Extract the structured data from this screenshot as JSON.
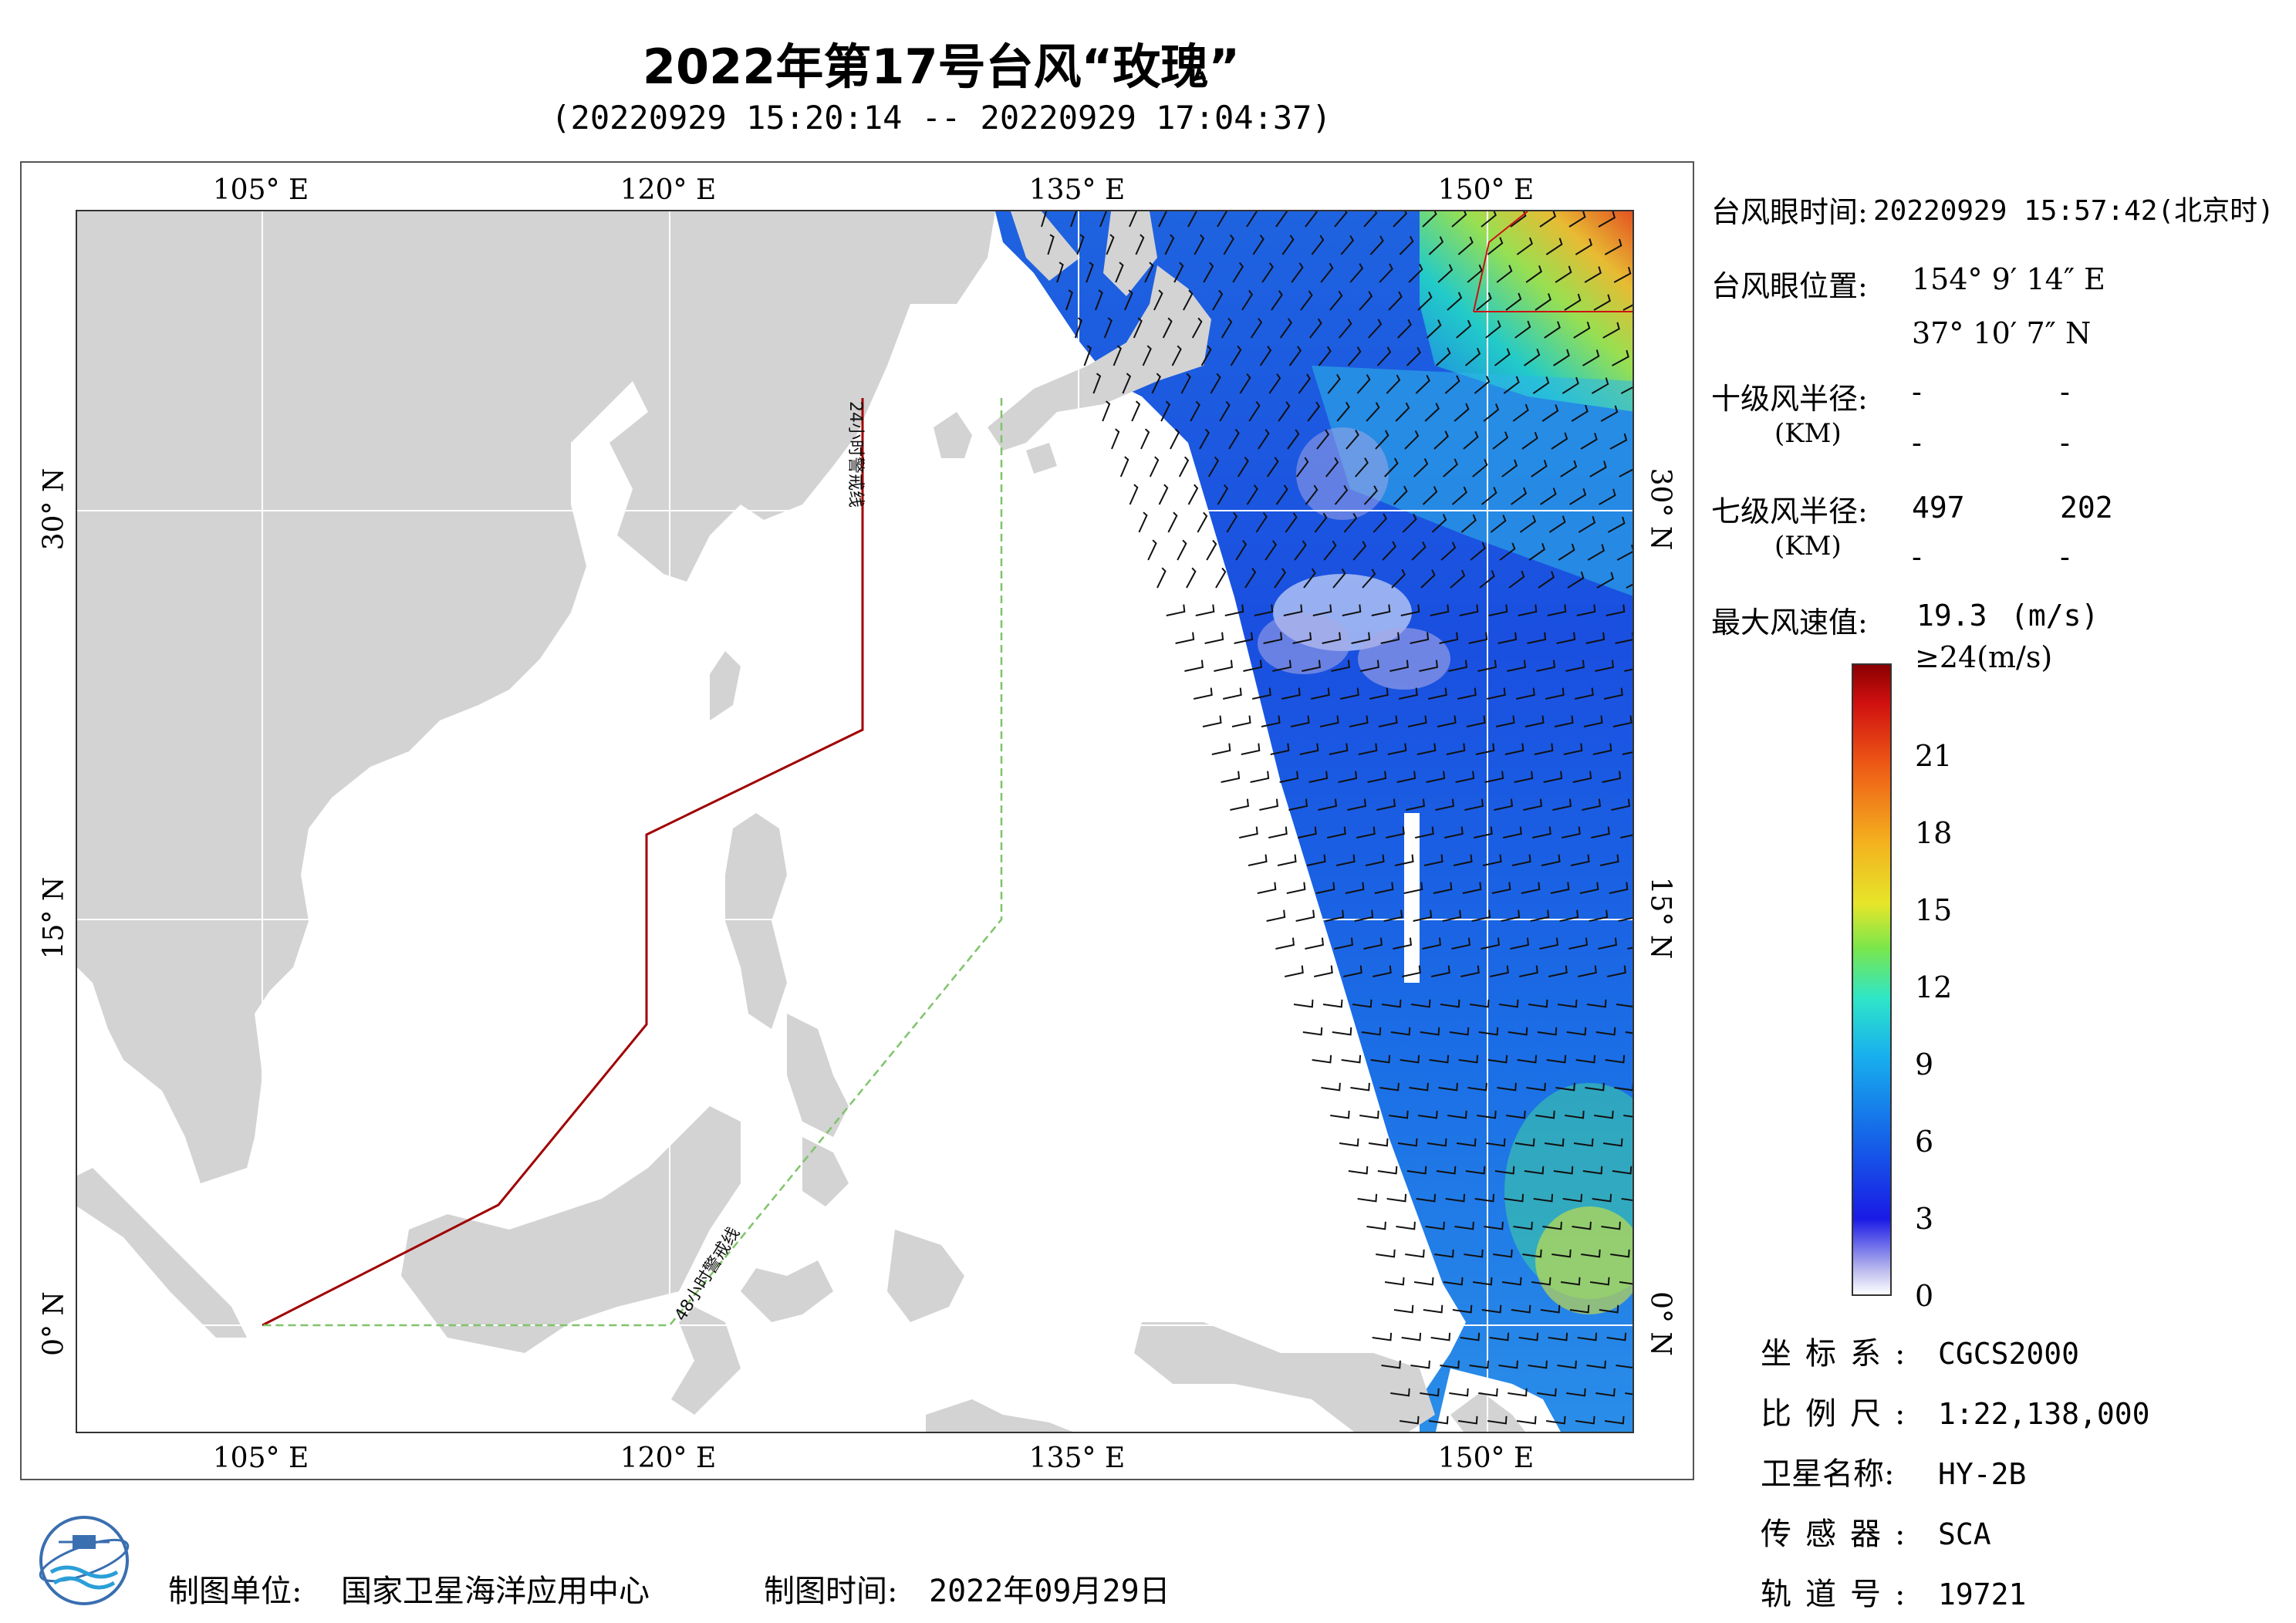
{
  "title": "2022年第17号台风“玫瑰”",
  "subtitle": "(20220929 15:20:14 -- 20220929 17:04:37)",
  "map": {
    "lon_ticks_top": [
      "105° E",
      "120° E",
      "135° E",
      "150° E"
    ],
    "lon_ticks_bottom": [
      "105° E",
      "120° E",
      "135° E",
      "150° E"
    ],
    "lat_ticks_left": [
      "30° N",
      "15° N",
      "0° N"
    ],
    "lat_ticks_right": [
      "30° N",
      "15° N",
      "0° N"
    ],
    "warning_24h_label": "24小时警戒线",
    "warning_48h_label": "48小时警戒线",
    "colors": {
      "land": "#d3d3d3",
      "warning_24h": "#a00000",
      "warning_48h": "#7fc46a"
    }
  },
  "typhoon": {
    "eye_time_label": "台风眼时间:",
    "eye_time_value": "20220929 15:57:42(北京时)",
    "eye_pos_label": "台风眼位置:",
    "eye_lon": "154° 9′ 14″ E",
    "eye_lat": "37° 10′ 7″ N",
    "r10_label": "十级风半径:",
    "r10_unit": "(KM)",
    "r10_values": [
      "-",
      "-",
      "-",
      "-"
    ],
    "r7_label": "七级风半径:",
    "r7_unit": "(KM)",
    "r7_values": [
      "497",
      "202",
      "-",
      "-"
    ],
    "max_wind_label": "最大风速值:",
    "max_wind_value": "19.3",
    "max_wind_unit": "(m/s)"
  },
  "colorbar": {
    "labels": [
      "≥24(m/s)",
      "21",
      "18",
      "15",
      "12",
      "9",
      "6",
      "3",
      "0"
    ],
    "values": [
      24,
      21,
      18,
      15,
      12,
      9,
      6,
      3,
      0
    ]
  },
  "meta": {
    "crs_label": "坐标系:",
    "crs_value": "CGCS2000",
    "scale_label": "比例尺:",
    "scale_value": "1:22,138,000",
    "satellite_label": "卫星名称:",
    "satellite_value": "HY-2B",
    "sensor_label": "传感器:",
    "sensor_value": "SCA",
    "orbit_label": "轨道号:",
    "orbit_value": "19721"
  },
  "footer": {
    "producer_label": "制图单位:",
    "producer_value": "国家卫星海洋应用中心",
    "date_label": "制图时间:",
    "date_value": "2022年09月29日"
  }
}
